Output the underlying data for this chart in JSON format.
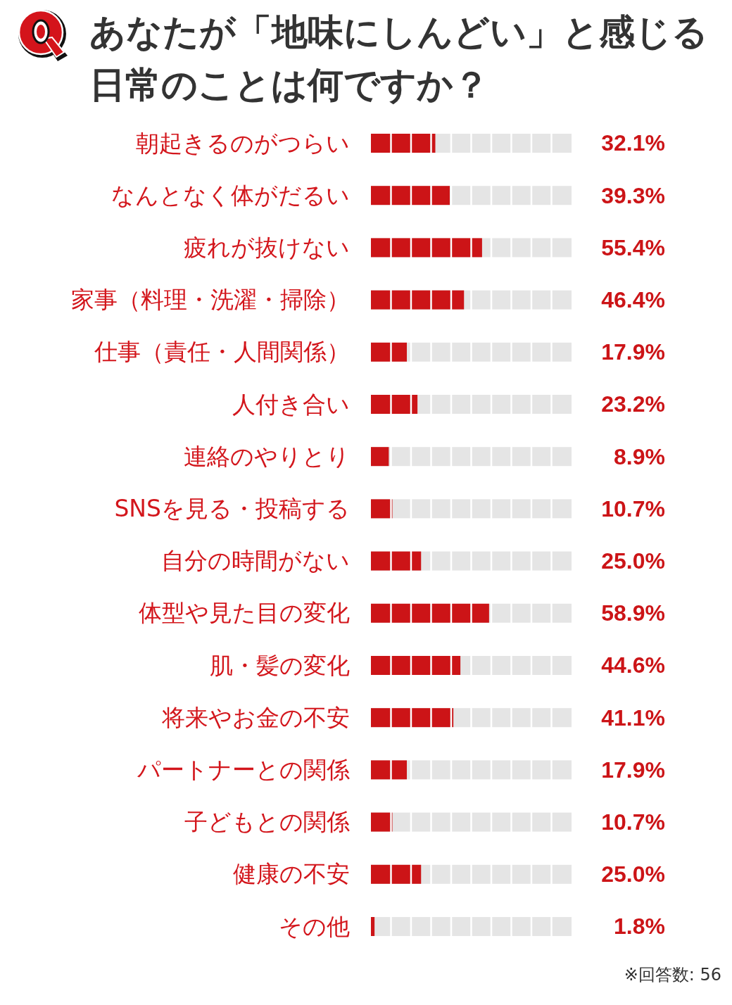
{
  "chart_data": {
    "type": "bar",
    "orientation": "horizontal",
    "title": "あなたが「地味にしんどい」と感じる日常のことは何ですか？",
    "categories": [
      "朝起きるのがつらい",
      "なんとなく体がだるい",
      "疲れが抜けない",
      "家事（料理・洗濯・掃除）",
      "仕事（責任・人間関係）",
      "人付き合い",
      "連絡のやりとり",
      "SNSを見る・投稿する",
      "自分の時間がない",
      "体型や見た目の変化",
      "肌・髪の変化",
      "将来やお金の不安",
      "パートナーとの関係",
      "子どもとの関係",
      "健康の不安",
      "その他"
    ],
    "values": [
      32.1,
      39.3,
      55.4,
      46.4,
      17.9,
      23.2,
      8.9,
      10.7,
      25.0,
      58.9,
      44.6,
      41.1,
      17.9,
      10.7,
      25.0,
      1.8
    ],
    "value_labels": [
      "32.1%",
      "39.3%",
      "55.4%",
      "46.4%",
      "17.9%",
      "23.2%",
      "8.9%",
      "10.7%",
      "25.0%",
      "58.9%",
      "44.6%",
      "41.1%",
      "17.9%",
      "10.7%",
      "25.0%",
      "1.8%"
    ],
    "color": "#cc1417",
    "xlim": [
      0,
      100
    ],
    "tick_labels": "y",
    "annotations": [
      "※回答数: 56"
    ]
  }
}
